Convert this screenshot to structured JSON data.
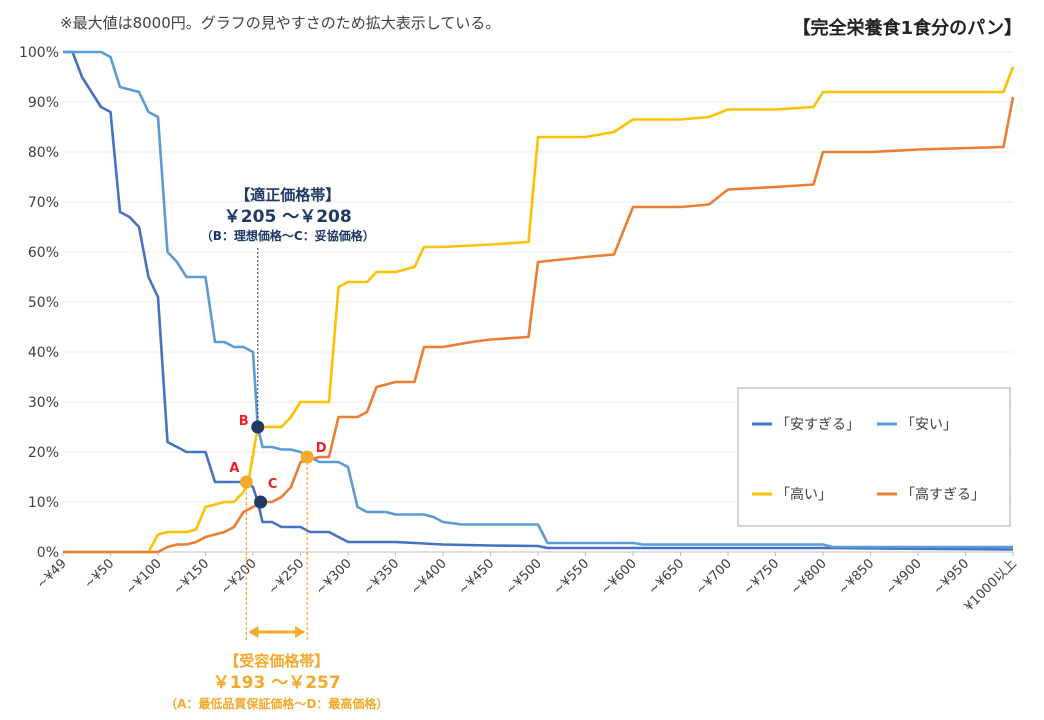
{
  "note": "※最大値は8000円。グラフの見やすさのため拡大表示している。",
  "title": "【完全栄養食1食分のパン】",
  "annotations": {
    "optimal_title": "【適正価格帯】",
    "optimal_range": "￥205 ～￥208",
    "optimal_sub": "（B：理想価格～C：妥協価格）",
    "acceptable_title": "【受容価格帯】",
    "acceptable_range": "￥193 ～￥257",
    "acceptable_sub": "（A：最低品質保証価格～D：最高価格）"
  },
  "colors": {
    "too_cheap": "#4472C4",
    "cheap": "#5B9BD5",
    "expensive": "#FFC000",
    "too_expensive": "#ED7D31",
    "point_dark": "#1F3864",
    "point_orange": "#F4A92A",
    "point_label": "#E8202A",
    "range_arrow": "#F4A92A"
  },
  "chart_data": {
    "type": "line",
    "xlabel": "",
    "ylabel": "",
    "x_ticks": [
      "~¥49",
      "~¥50",
      "~¥100",
      "~¥150",
      "~¥200",
      "~¥250",
      "~¥300",
      "~¥350",
      "~¥400",
      "~¥450",
      "~¥500",
      "~¥550",
      "~¥600",
      "~¥650",
      "~¥700",
      "~¥750",
      "~¥800",
      "~¥850",
      "~¥900",
      "~¥950",
      "¥1000以上"
    ],
    "y_ticks": [
      "0%",
      "10%",
      "20%",
      "30%",
      "40%",
      "50%",
      "60%",
      "70%",
      "80%",
      "90%",
      "100%"
    ],
    "ylim": [
      0,
      100
    ],
    "xlim": [
      0,
      1000
    ],
    "legend_position": "lower-right",
    "series": [
      {
        "name": "「安すぎる」",
        "key": "too_cheap",
        "points": [
          [
            0,
            100
          ],
          [
            10,
            100
          ],
          [
            20,
            95
          ],
          [
            30,
            92
          ],
          [
            40,
            89
          ],
          [
            50,
            88
          ],
          [
            60,
            68
          ],
          [
            70,
            67
          ],
          [
            80,
            65
          ],
          [
            90,
            55
          ],
          [
            100,
            51
          ],
          [
            110,
            22
          ],
          [
            120,
            21
          ],
          [
            130,
            20
          ],
          [
            140,
            20
          ],
          [
            150,
            20
          ],
          [
            160,
            14
          ],
          [
            170,
            14
          ],
          [
            180,
            14
          ],
          [
            190,
            14
          ],
          [
            200,
            13
          ],
          [
            205,
            10
          ],
          [
            210,
            6
          ],
          [
            220,
            6
          ],
          [
            230,
            5
          ],
          [
            240,
            5
          ],
          [
            250,
            5
          ],
          [
            260,
            4
          ],
          [
            270,
            4
          ],
          [
            280,
            4
          ],
          [
            290,
            3
          ],
          [
            300,
            2
          ],
          [
            350,
            2
          ],
          [
            400,
            1.5
          ],
          [
            450,
            1.3
          ],
          [
            500,
            1.2
          ],
          [
            510,
            0.8
          ],
          [
            600,
            0.8
          ],
          [
            800,
            0.8
          ],
          [
            1000,
            0.5
          ]
        ]
      },
      {
        "name": "「安い」",
        "key": "cheap",
        "points": [
          [
            0,
            100
          ],
          [
            40,
            100
          ],
          [
            50,
            99
          ],
          [
            60,
            93
          ],
          [
            80,
            92
          ],
          [
            90,
            88
          ],
          [
            100,
            87
          ],
          [
            110,
            60
          ],
          [
            120,
            58
          ],
          [
            130,
            55
          ],
          [
            140,
            55
          ],
          [
            150,
            55
          ],
          [
            160,
            42
          ],
          [
            170,
            42
          ],
          [
            180,
            41
          ],
          [
            190,
            41
          ],
          [
            200,
            40
          ],
          [
            205,
            25
          ],
          [
            210,
            21
          ],
          [
            220,
            21
          ],
          [
            230,
            20.5
          ],
          [
            240,
            20.5
          ],
          [
            250,
            20
          ],
          [
            260,
            19
          ],
          [
            270,
            18
          ],
          [
            280,
            18
          ],
          [
            290,
            18
          ],
          [
            300,
            17
          ],
          [
            310,
            9
          ],
          [
            320,
            8
          ],
          [
            340,
            8
          ],
          [
            350,
            7.5
          ],
          [
            380,
            7.5
          ],
          [
            390,
            7
          ],
          [
            400,
            6
          ],
          [
            420,
            5.5
          ],
          [
            450,
            5.5
          ],
          [
            500,
            5.5
          ],
          [
            510,
            1.8
          ],
          [
            600,
            1.8
          ],
          [
            610,
            1.5
          ],
          [
            800,
            1.5
          ],
          [
            810,
            1
          ],
          [
            1000,
            1
          ]
        ]
      },
      {
        "name": "「高い」",
        "key": "expensive",
        "points": [
          [
            0,
            0
          ],
          [
            90,
            0
          ],
          [
            100,
            3.5
          ],
          [
            110,
            4
          ],
          [
            120,
            4
          ],
          [
            130,
            4
          ],
          [
            140,
            4.5
          ],
          [
            150,
            9
          ],
          [
            160,
            9.5
          ],
          [
            170,
            10
          ],
          [
            180,
            10
          ],
          [
            190,
            12
          ],
          [
            195,
            14
          ],
          [
            205,
            25
          ],
          [
            220,
            25
          ],
          [
            230,
            25
          ],
          [
            240,
            27
          ],
          [
            250,
            30
          ],
          [
            260,
            30
          ],
          [
            270,
            30
          ],
          [
            280,
            30
          ],
          [
            290,
            53
          ],
          [
            300,
            54
          ],
          [
            320,
            54
          ],
          [
            330,
            56
          ],
          [
            350,
            56
          ],
          [
            370,
            57
          ],
          [
            380,
            61
          ],
          [
            400,
            61
          ],
          [
            450,
            61.5
          ],
          [
            490,
            62
          ],
          [
            500,
            83
          ],
          [
            550,
            83
          ],
          [
            580,
            84
          ],
          [
            600,
            86.5
          ],
          [
            650,
            86.5
          ],
          [
            680,
            87
          ],
          [
            700,
            88.5
          ],
          [
            750,
            88.5
          ],
          [
            790,
            89
          ],
          [
            800,
            92
          ],
          [
            850,
            92
          ],
          [
            900,
            92
          ],
          [
            990,
            92
          ],
          [
            1000,
            97
          ]
        ]
      },
      {
        "name": "「高すぎる」",
        "key": "too_expensive",
        "points": [
          [
            0,
            0
          ],
          [
            100,
            0
          ],
          [
            110,
            1
          ],
          [
            120,
            1.5
          ],
          [
            130,
            1.5
          ],
          [
            140,
            2
          ],
          [
            150,
            3
          ],
          [
            160,
            3.5
          ],
          [
            170,
            4
          ],
          [
            180,
            5
          ],
          [
            190,
            8
          ],
          [
            200,
            9
          ],
          [
            210,
            10
          ],
          [
            220,
            10
          ],
          [
            230,
            11
          ],
          [
            240,
            13
          ],
          [
            250,
            18
          ],
          [
            270,
            19
          ],
          [
            280,
            19
          ],
          [
            290,
            27
          ],
          [
            310,
            27
          ],
          [
            320,
            28
          ],
          [
            330,
            33
          ],
          [
            350,
            34
          ],
          [
            370,
            34
          ],
          [
            380,
            41
          ],
          [
            400,
            41
          ],
          [
            430,
            42
          ],
          [
            450,
            42.5
          ],
          [
            490,
            43
          ],
          [
            500,
            58
          ],
          [
            550,
            59
          ],
          [
            580,
            59.5
          ],
          [
            600,
            69
          ],
          [
            650,
            69
          ],
          [
            680,
            69.5
          ],
          [
            700,
            72.5
          ],
          [
            750,
            73
          ],
          [
            790,
            73.5
          ],
          [
            800,
            80
          ],
          [
            850,
            80
          ],
          [
            900,
            80.5
          ],
          [
            990,
            81
          ],
          [
            1000,
            91
          ]
        ]
      }
    ],
    "points": [
      {
        "label": "A",
        "x": 193,
        "y": 14,
        "color_key": "point_orange"
      },
      {
        "label": "B",
        "x": 205,
        "y": 25,
        "color_key": "point_dark"
      },
      {
        "label": "C",
        "x": 208,
        "y": 10,
        "color_key": "point_dark"
      },
      {
        "label": "D",
        "x": 257,
        "y": 19,
        "color_key": "point_orange"
      }
    ]
  }
}
